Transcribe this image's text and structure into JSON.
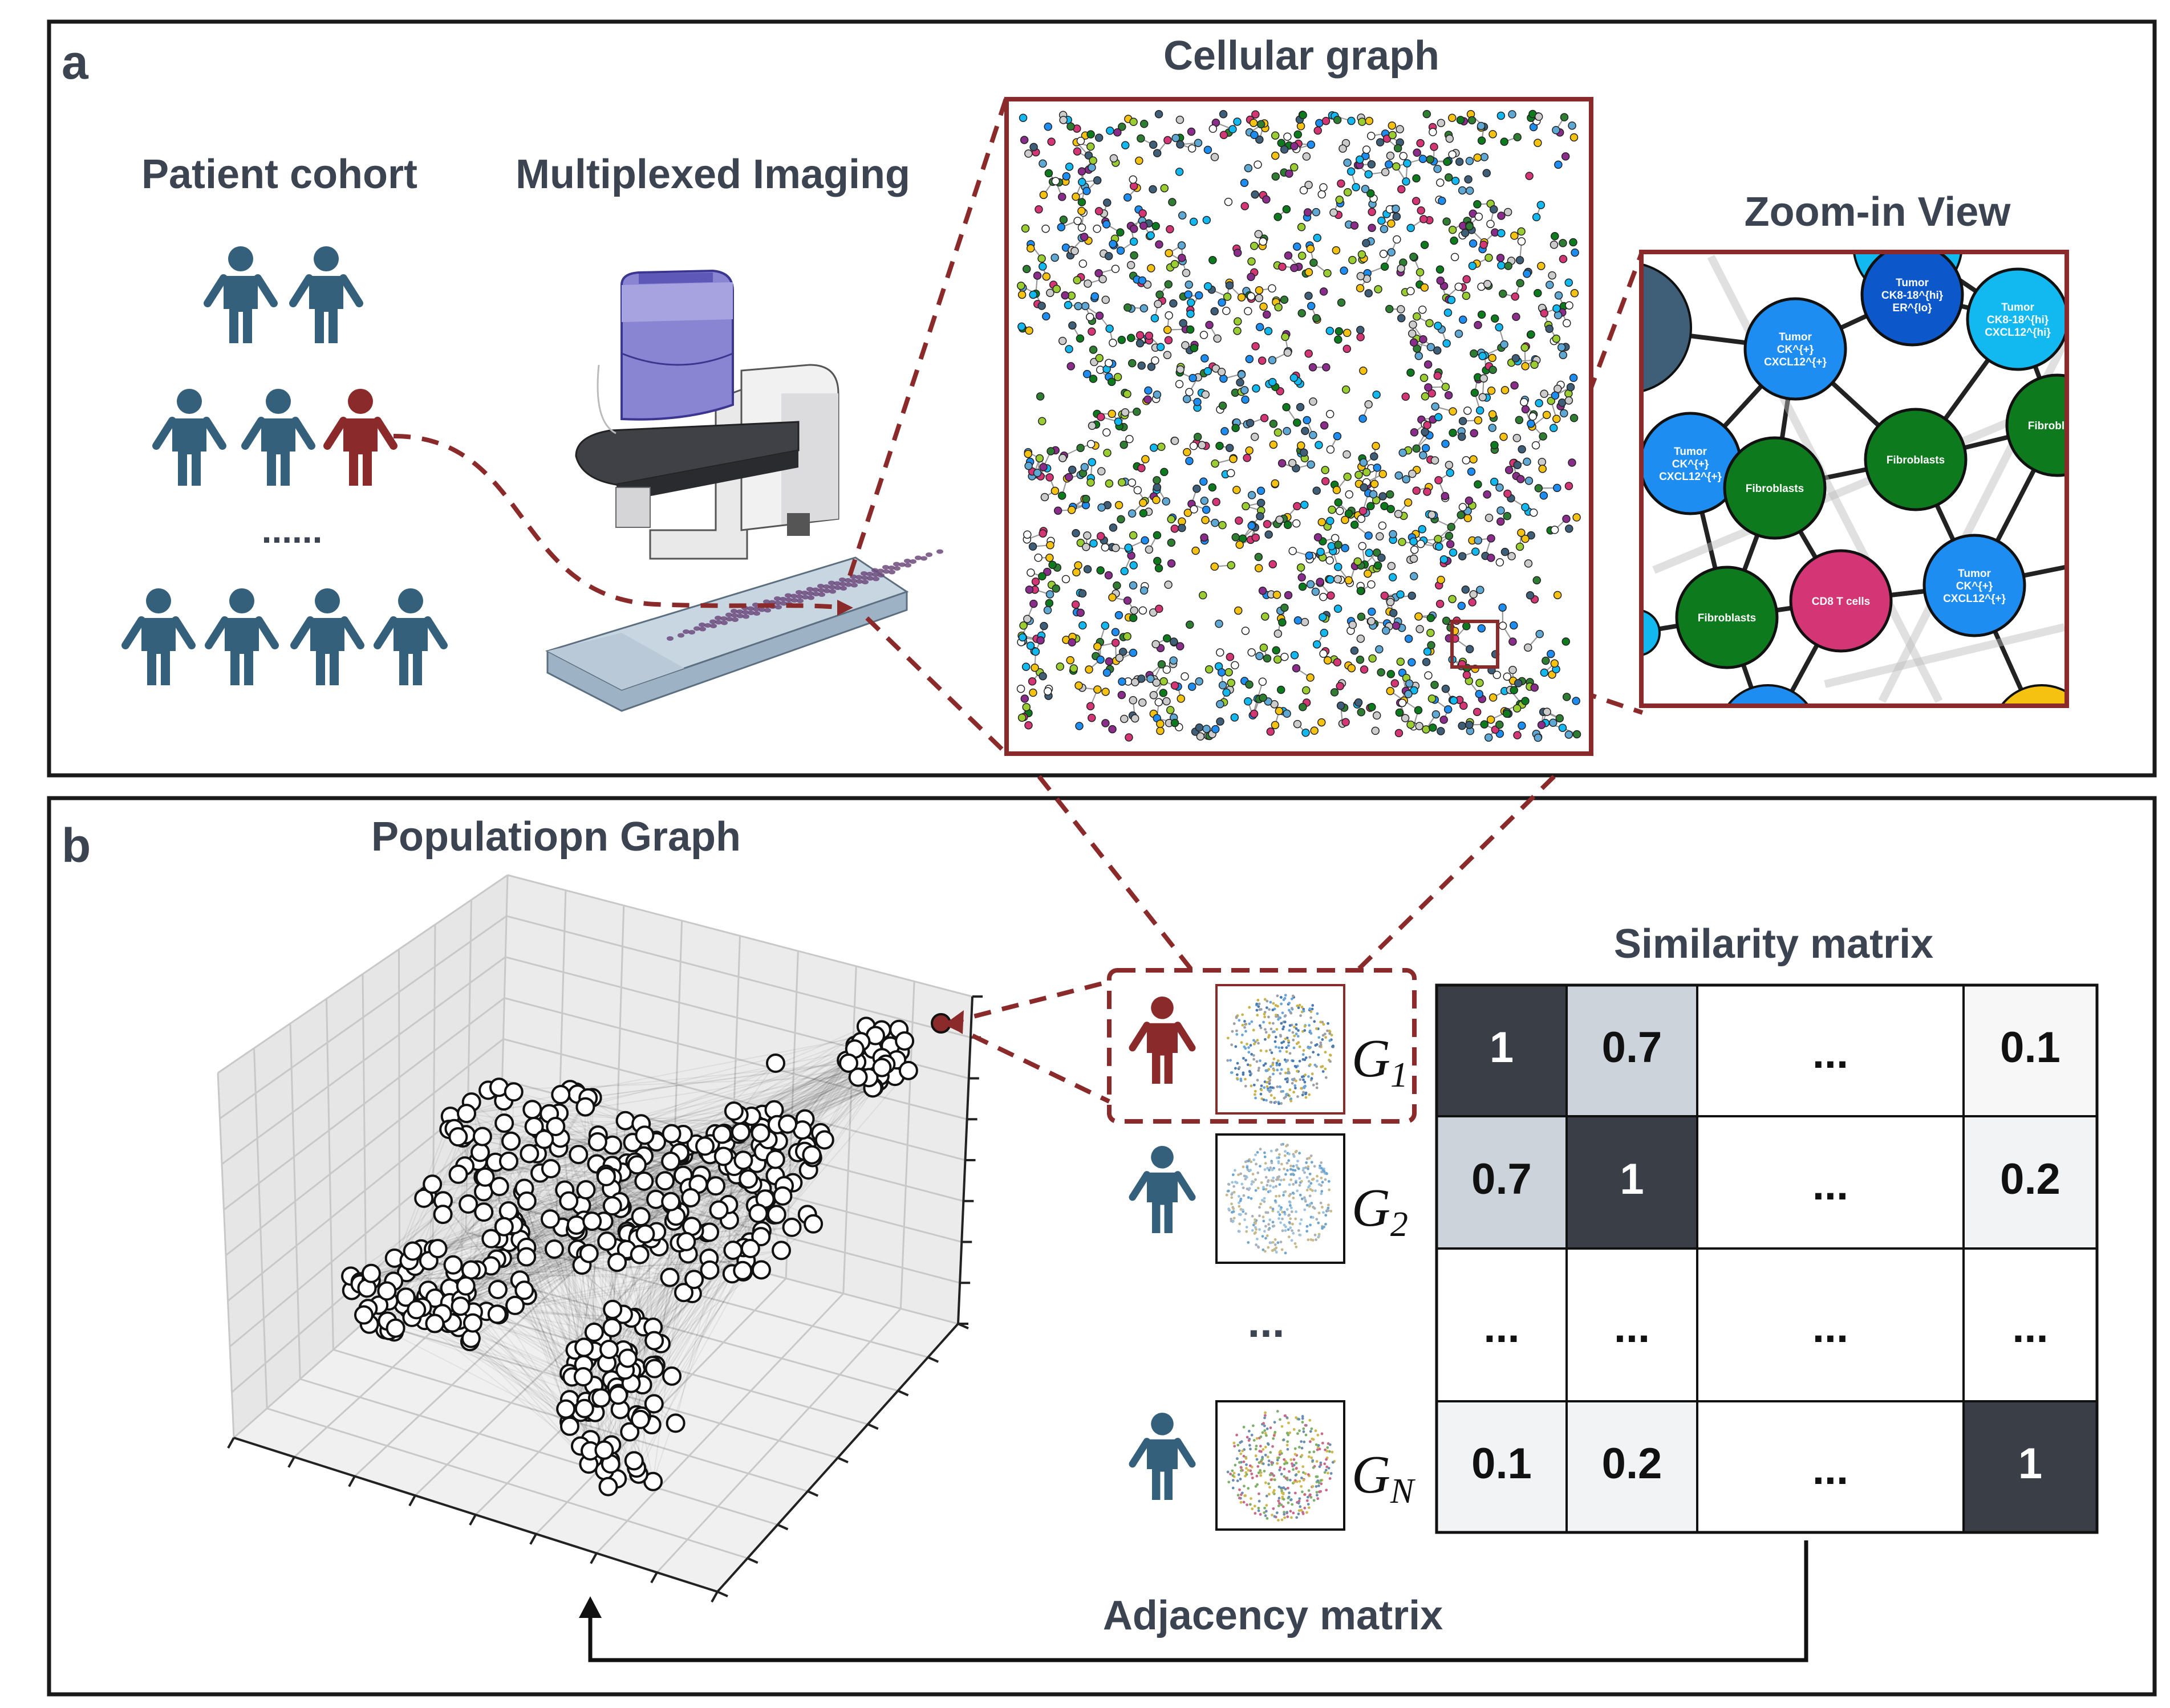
{
  "panel_a": {
    "letter": "a",
    "patient_cohort_title": "Patient cohort",
    "imaging_title": "Multiplexed Imaging",
    "cellular_graph_title": "Cellular graph",
    "zoom_title": "Zoom-in View",
    "cohort_ellipsis": "......",
    "zoom_nodes": [
      {
        "label_lines": [
          "Tumor",
          "CK8-18^{hi}",
          "ER^{lo}"
        ],
        "color": "#0c57c9"
      },
      {
        "label_lines": [
          "Tumor",
          "CK^{+}",
          "CXCL12^{+}"
        ],
        "color": "#1e8df2"
      },
      {
        "label_lines": [
          "Tumor",
          "CK8-18^{hi}",
          "CXCL12^{hi}"
        ],
        "color": "#12b8f0"
      },
      {
        "label_lines": [
          "Fibroblasts"
        ],
        "color": "#0e7a1e"
      },
      {
        "label_lines": [
          "Tumor",
          "CK^{+}",
          "CXCL12^{+}"
        ],
        "color": "#1e8df2"
      },
      {
        "label_lines": [
          "Fibroblasts"
        ],
        "color": "#0e7a1e"
      },
      {
        "label_lines": [
          "Fibroblasts"
        ],
        "color": "#0e7a1e"
      },
      {
        "label_lines": [
          "Fibroblasts"
        ],
        "color": "#0e7a1e"
      },
      {
        "label_lines": [
          "CD8 T cells"
        ],
        "color": "#d43574"
      },
      {
        "label_lines": [
          "Tumor",
          "CK^{+}",
          "CXCL12^{+}"
        ],
        "color": "#1e8df2"
      }
    ]
  },
  "panel_b": {
    "letter": "b",
    "population_title": "Populatiopn Graph",
    "similarity_title": "Similarity matrix",
    "adjacency_label": "Adjacency matrix",
    "graph_labels": [
      {
        "base": "G",
        "sub": "1"
      },
      {
        "base": "G",
        "sub": "2"
      },
      {
        "base": "G",
        "sub": "N"
      }
    ],
    "list_ellipsis": "...",
    "matrix": [
      [
        "1",
        "0.7",
        "...",
        "0.1"
      ],
      [
        "0.7",
        "1",
        "...",
        "0.2"
      ],
      [
        "...",
        "...",
        "...",
        "..."
      ],
      [
        "0.1",
        "0.2",
        "...",
        "1"
      ]
    ]
  },
  "colors": {
    "patient": "#35607b",
    "selected_patient": "#8b2a2a",
    "highlight": "#8b2a2a",
    "matrix_high": "#3a3f47",
    "matrix_mid": "#cdd3db",
    "matrix_low": "#f2f3f5"
  }
}
